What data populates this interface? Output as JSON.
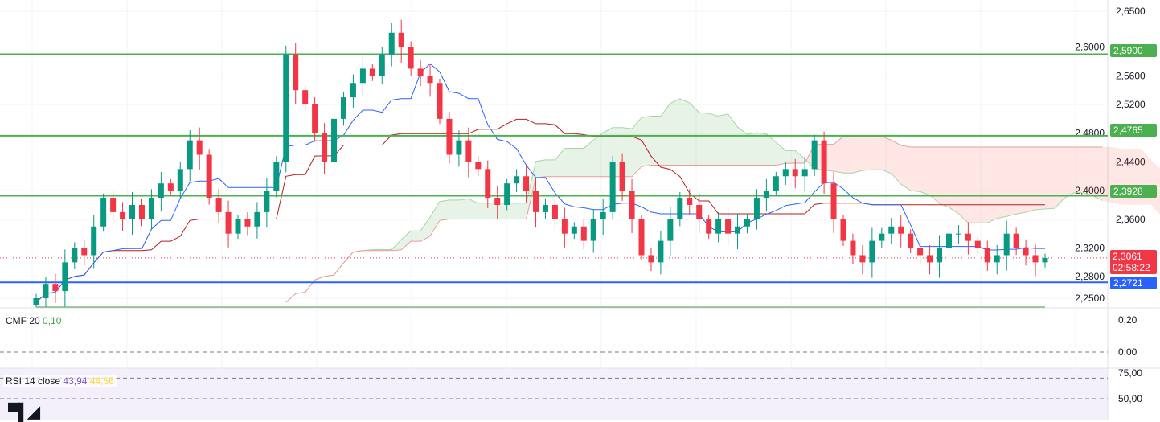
{
  "chart_data": {
    "type": "candlestick",
    "price_axis": {
      "min": 2.25,
      "max": 2.65,
      "ticks": [
        "2,6500",
        "2,6000",
        "2,5600",
        "2,5200",
        "2,4800",
        "2,4400",
        "2,4000",
        "2,3600",
        "2,3200",
        "2,2800",
        "2,2500"
      ],
      "tick_values": [
        2.65,
        2.6,
        2.56,
        2.52,
        2.48,
        2.44,
        2.4,
        2.36,
        2.32,
        2.28,
        2.25
      ]
    },
    "closes": [
      2.25,
      2.27,
      2.26,
      2.3,
      2.32,
      2.31,
      2.35,
      2.39,
      2.37,
      2.36,
      2.38,
      2.36,
      2.39,
      2.41,
      2.4,
      2.43,
      2.47,
      2.45,
      2.39,
      2.37,
      2.34,
      2.36,
      2.35,
      2.37,
      2.4,
      2.44,
      2.59,
      2.54,
      2.52,
      2.48,
      2.44,
      2.5,
      2.53,
      2.55,
      2.57,
      2.56,
      2.59,
      2.62,
      2.6,
      2.57,
      2.56,
      2.55,
      2.5,
      2.45,
      2.47,
      2.44,
      2.43,
      2.39,
      2.38,
      2.41,
      2.42,
      2.4,
      2.37,
      2.38,
      2.36,
      2.34,
      2.35,
      2.33,
      2.36,
      2.37,
      2.44,
      2.4,
      2.36,
      2.31,
      2.3,
      2.33,
      2.36,
      2.39,
      2.38,
      2.36,
      2.34,
      2.36,
      2.34,
      2.35,
      2.36,
      2.39,
      2.4,
      2.42,
      2.43,
      2.42,
      2.43,
      2.47,
      2.41,
      2.36,
      2.33,
      2.31,
      2.3,
      2.33,
      2.34,
      2.35,
      2.34,
      2.32,
      2.31,
      2.3,
      2.32,
      2.34,
      2.34,
      2.33,
      2.32,
      2.3,
      2.31,
      2.34,
      2.32,
      2.31,
      2.3,
      2.3061
    ],
    "levels": [
      {
        "value": 2.59,
        "label": "2,5900",
        "color": "#4caf50"
      },
      {
        "value": 2.4765,
        "label": "2,4765",
        "color": "#4caf50"
      },
      {
        "value": 2.3928,
        "label": "2,3928",
        "color": "#4caf50"
      },
      {
        "value": 2.2721,
        "label": "2,2721",
        "color": "#2962ff"
      }
    ],
    "last_price": {
      "value": 2.3061,
      "label": "2,3061",
      "countdown": "02:58:22",
      "color": "#f23645"
    },
    "colors": {
      "up": "#089981",
      "down": "#f23645",
      "tenkan": "#2962ff",
      "kijun": "#b71c1c"
    },
    "cmf": {
      "title": "CMF 20",
      "value": "0,10",
      "ticks": [
        "0,20",
        "0,00"
      ],
      "color": "#43a047"
    },
    "rsi": {
      "title": "RSI 14 close",
      "value": "43,94",
      "ma_value": "44,56",
      "ticks": [
        "75,00",
        "50,00"
      ],
      "color": "#7e57c2",
      "ma_color": "#fdd835"
    }
  }
}
